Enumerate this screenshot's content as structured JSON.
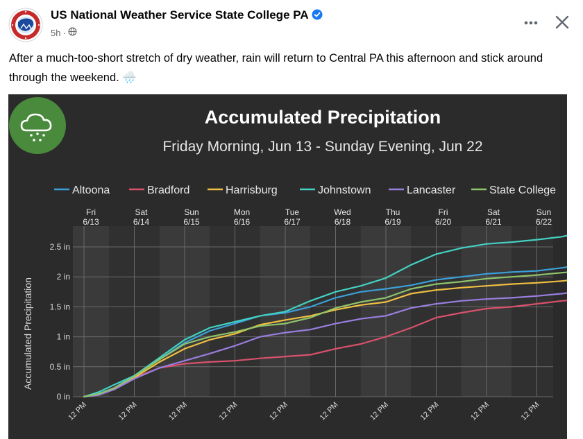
{
  "post": {
    "author": "US National Weather Service State College PA",
    "time": "5h",
    "privacy_icon": "globe-icon",
    "text": "After a much-too-short stretch of dry weather, rain will return to Central PA this afternoon and stick around through the weekend. 🌧️"
  },
  "chart_data": {
    "type": "line",
    "title": "Accumulated Precipitation",
    "subtitle": "Friday Morning, Jun 13 - Sunday Evening, Jun 22",
    "ylabel": "Accumulated Precipitation",
    "xlabel": "",
    "ylim": [
      0,
      2.75
    ],
    "y_ticks": [
      "0 in",
      "0.5 in",
      "1 in",
      "1.5 in",
      "2 in",
      "2.5 in"
    ],
    "y_tick_values": [
      0,
      0.5,
      1,
      1.5,
      2,
      2.5
    ],
    "x_range": [
      0,
      9.9
    ],
    "day_labels": [
      {
        "day": "Fri",
        "date": "6/13"
      },
      {
        "day": "Sat",
        "date": "6/14"
      },
      {
        "day": "Sun",
        "date": "6/15"
      },
      {
        "day": "Mon",
        "date": "6/16"
      },
      {
        "day": "Tue",
        "date": "6/17"
      },
      {
        "day": "Wed",
        "date": "6/18"
      },
      {
        "day": "Thu",
        "date": "6/19"
      },
      {
        "day": "Fri",
        "date": "6/20"
      },
      {
        "day": "Sat",
        "date": "6/21"
      },
      {
        "day": "Sun",
        "date": "6/22"
      }
    ],
    "x_tick_label": "12 PM",
    "x": [
      0,
      0.3,
      0.6,
      1.0,
      1.5,
      2.0,
      2.5,
      3.0,
      3.5,
      4.0,
      4.5,
      5.0,
      5.5,
      6.0,
      6.5,
      7.0,
      7.5,
      8.0,
      8.5,
      9.0,
      9.5,
      9.9
    ],
    "series": [
      {
        "name": "Altoona",
        "color": "#3aa0d8",
        "values": [
          0,
          0.05,
          0.15,
          0.35,
          0.62,
          0.9,
          1.1,
          1.22,
          1.35,
          1.4,
          1.5,
          1.65,
          1.75,
          1.8,
          1.86,
          1.95,
          2.0,
          2.05,
          2.08,
          2.1,
          2.15,
          2.2
        ]
      },
      {
        "name": "Bradford",
        "color": "#d9526b",
        "values": [
          0,
          0.03,
          0.15,
          0.32,
          0.48,
          0.55,
          0.58,
          0.6,
          0.64,
          0.67,
          0.7,
          0.8,
          0.88,
          1.0,
          1.15,
          1.32,
          1.4,
          1.47,
          1.5,
          1.55,
          1.6,
          1.63
        ]
      },
      {
        "name": "Harrisburg",
        "color": "#f0c040",
        "values": [
          0,
          0.04,
          0.12,
          0.32,
          0.58,
          0.8,
          0.95,
          1.05,
          1.2,
          1.28,
          1.35,
          1.45,
          1.53,
          1.58,
          1.72,
          1.78,
          1.82,
          1.85,
          1.88,
          1.9,
          1.93,
          1.97
        ]
      },
      {
        "name": "Johnstown",
        "color": "#43d1c3",
        "values": [
          0,
          0.08,
          0.2,
          0.35,
          0.65,
          0.95,
          1.15,
          1.25,
          1.35,
          1.42,
          1.6,
          1.75,
          1.85,
          1.98,
          2.2,
          2.38,
          2.48,
          2.55,
          2.58,
          2.62,
          2.67,
          2.75
        ]
      },
      {
        "name": "Lancaster",
        "color": "#9a7ee0",
        "values": [
          0,
          0.03,
          0.12,
          0.3,
          0.48,
          0.6,
          0.72,
          0.85,
          1.0,
          1.07,
          1.12,
          1.22,
          1.3,
          1.35,
          1.48,
          1.55,
          1.6,
          1.63,
          1.65,
          1.68,
          1.72,
          1.76
        ]
      },
      {
        "name": "State College",
        "color": "#8fc46a",
        "values": [
          0,
          0.05,
          0.14,
          0.34,
          0.62,
          0.88,
          1.0,
          1.08,
          1.18,
          1.22,
          1.32,
          1.48,
          1.58,
          1.65,
          1.8,
          1.88,
          1.92,
          1.97,
          2.0,
          2.03,
          2.07,
          2.1
        ]
      }
    ]
  }
}
